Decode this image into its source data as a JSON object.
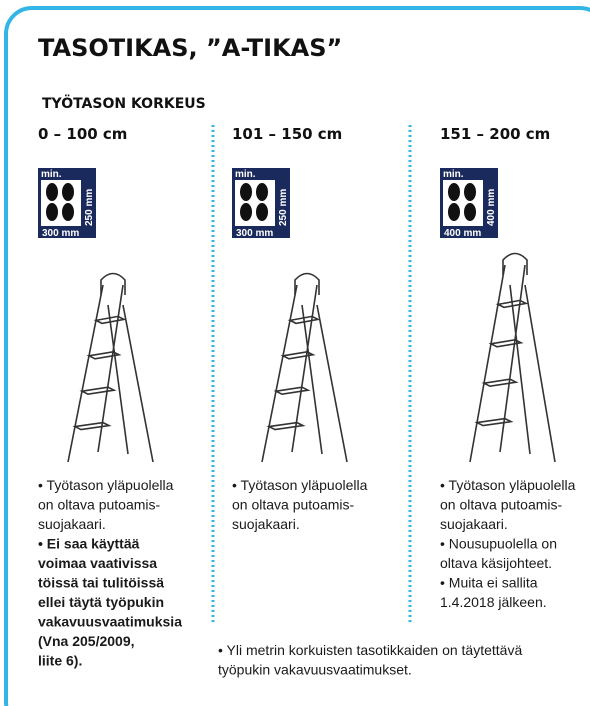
{
  "header": {
    "title": "TASOTIKAS, ”A-TIKAS”",
    "subtitle": "TYÖTASON KORKEUS"
  },
  "columns": [
    {
      "range": "0 – 100 cm",
      "icon": {
        "min": "min.",
        "side": "250 mm",
        "bottom": "300 mm"
      },
      "notes": [
        {
          "lines": [
            "• Työtason yläpuolella",
            "on oltava putoamis-",
            "suojakaari."
          ]
        },
        {
          "bold": true,
          "lines": [
            "• Ei saa käyttää",
            "voimaa vaativissa",
            "töissä tai tulitöissä",
            "ellei täytä työpukin",
            "vakavuusvaatimuksia",
            "(Vna 205/2009,",
            "liite 6)."
          ]
        }
      ]
    },
    {
      "range": "101 – 150 cm",
      "icon": {
        "min": "min.",
        "side": "250 mm",
        "bottom": "300 mm"
      },
      "notes": [
        {
          "lines": [
            "• Työtason yläpuolella",
            "on oltava putoamis-",
            "suojakaari."
          ]
        }
      ]
    },
    {
      "range": "151 – 200 cm",
      "icon": {
        "min": "min.",
        "side": "400 mm",
        "bottom": "400 mm"
      },
      "notes": [
        {
          "lines": [
            "• Työtason yläpuolella",
            "on oltava putoamis-",
            "suojakaari."
          ]
        },
        {
          "lines": [
            "• Nousupuolella on",
            "oltava käsijohteet."
          ]
        },
        {
          "lines": [
            "• Muita ei sallita",
            "1.4.2018 jälkeen."
          ]
        }
      ]
    }
  ],
  "footnote": {
    "lines": [
      "• Yli metrin korkuisten tasotikkaiden on täytettävä",
      "työpukin vakavuusvaatimukset."
    ]
  }
}
